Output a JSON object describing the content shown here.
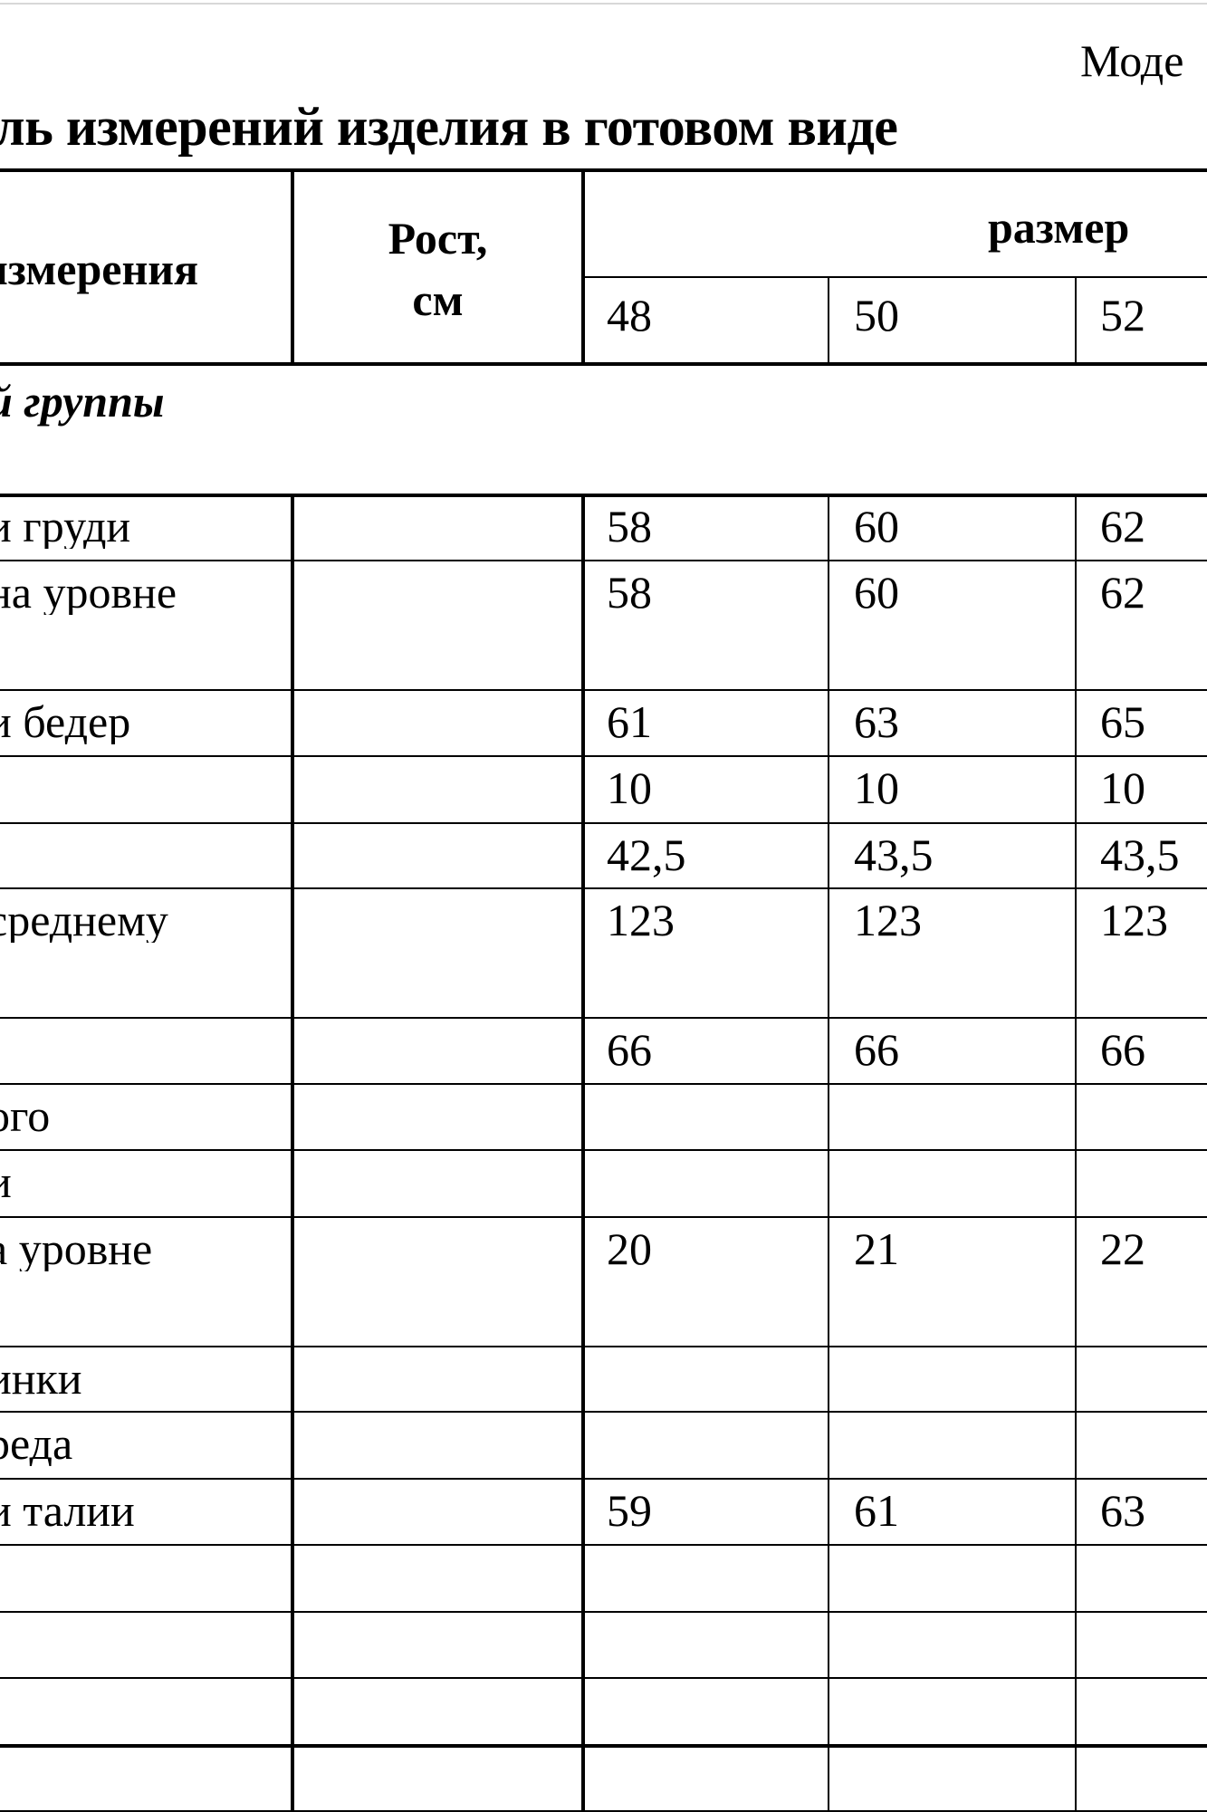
{
  "document": {
    "model_label": "Моде",
    "title": "ль измерений изделия в готовом виде"
  },
  "table": {
    "header": {
      "measure_col": "измерения",
      "height_col_line1": "Рост,",
      "height_col_line2": "см",
      "size_group": "размер",
      "sizes": [
        "48",
        "50",
        "52"
      ]
    },
    "group_label": "й группы",
    "rows": [
      {
        "label": "и груди",
        "height": "",
        "values": [
          "58",
          "60",
          "62"
        ]
      },
      {
        "label": "на уровне",
        "height": "",
        "values": [
          "58",
          "60",
          "62"
        ]
      },
      {
        "label": "и бедер",
        "height": "",
        "values": [
          "61",
          "63",
          "65"
        ]
      },
      {
        "label": "",
        "height": "",
        "values": [
          "10",
          "10",
          "10"
        ]
      },
      {
        "label": "",
        "height": "",
        "values": [
          "42,5",
          "43,5",
          "43,5"
        ]
      },
      {
        "label": "среднему",
        "height": "",
        "values": [
          "123",
          "123",
          "123"
        ]
      },
      {
        "label": "",
        "height": "",
        "values": [
          "66",
          "66",
          "66"
        ]
      },
      {
        "label": "ого",
        "height": "",
        "values": [
          "",
          "",
          ""
        ]
      },
      {
        "label": "и",
        "height": "",
        "values": [
          "",
          "",
          ""
        ]
      },
      {
        "label": "а уровне",
        "height": "",
        "values": [
          "20",
          "21",
          "22"
        ]
      },
      {
        "label": "инки",
        "height": "",
        "values": [
          "",
          "",
          ""
        ]
      },
      {
        "label": "реда",
        "height": "",
        "values": [
          "",
          "",
          ""
        ]
      },
      {
        "label": "и талии",
        "height": "",
        "values": [
          "59",
          "61",
          "63"
        ]
      },
      {
        "label": "",
        "height": "",
        "values": [
          "",
          "",
          ""
        ]
      },
      {
        "label": "",
        "height": "",
        "values": [
          "",
          "",
          ""
        ]
      },
      {
        "label": "",
        "height": "",
        "values": [
          "",
          "",
          ""
        ]
      },
      {
        "label": "",
        "height": "",
        "values": [
          "",
          "",
          ""
        ]
      }
    ]
  }
}
